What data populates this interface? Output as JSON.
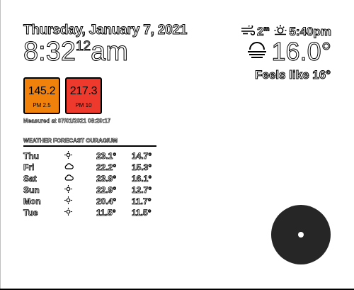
{
  "datetime": {
    "date": "Thursday, January 7, 2021",
    "time_hm": "8:32",
    "time_seconds": "12",
    "time_ampm": "am"
  },
  "current": {
    "wind_speed": "2",
    "wind_unit": "m",
    "sunset_time": "5:40pm",
    "temperature": "16.0°",
    "feels_like": "Feels like 16°",
    "wind_icon": "wind-icon",
    "sun_icon": "sunset-icon",
    "condition_icon": "haze-icon"
  },
  "air_quality": [
    {
      "value": "145.2",
      "label": "PM 2.5",
      "color": "#f0820c"
    },
    {
      "value": "217.3",
      "label": "PM 10",
      "color": "#ee3a2c"
    }
  ],
  "measured_at": "Measured at 07/01/2021 08:29:17",
  "forecast": {
    "title": "WEATHER FORECAST OURAGIUM",
    "rows": [
      {
        "day": "Thu",
        "icon": "sun-icon",
        "high": "23.1°",
        "low": "14.7°"
      },
      {
        "day": "Fri",
        "icon": "cloud-icon",
        "high": "22.2°",
        "low": "15.3°"
      },
      {
        "day": "Sat",
        "icon": "cloud-icon",
        "high": "23.9°",
        "low": "16.1°"
      },
      {
        "day": "Sun",
        "icon": "sun-icon",
        "high": "22.9°",
        "low": "12.7°"
      },
      {
        "day": "Mon",
        "icon": "sun-icon",
        "high": "20.4°",
        "low": "11.7°"
      },
      {
        "day": "Tue",
        "icon": "sun-icon",
        "high": "11.5°",
        "low": "11.5°"
      }
    ]
  }
}
